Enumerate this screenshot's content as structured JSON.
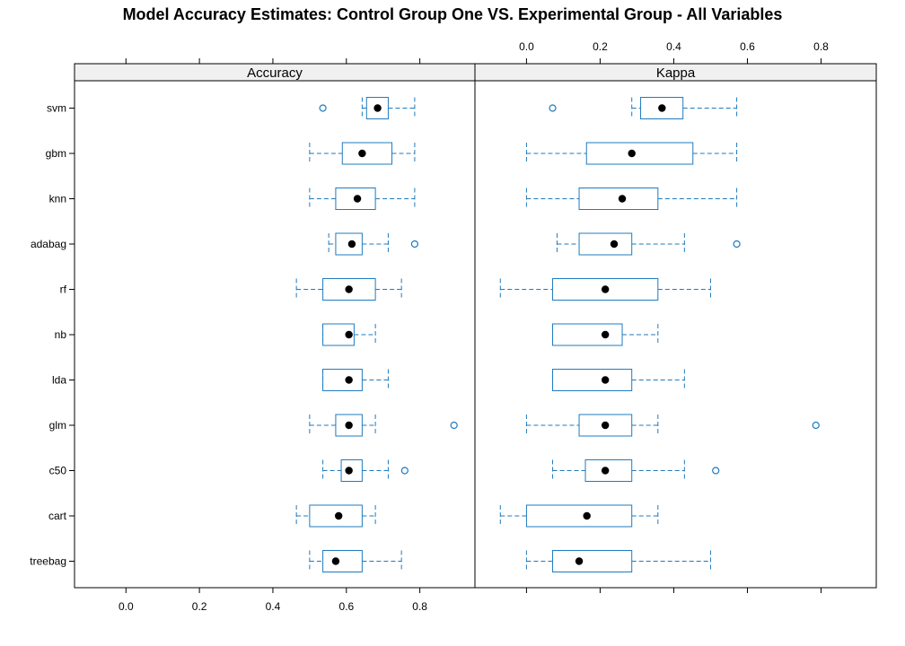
{
  "chart_data": {
    "type": "box",
    "title": "Model Accuracy Estimates: Control Group One VS. Experimental Group - All Variables",
    "categories": [
      "svm",
      "gbm",
      "knn",
      "adabag",
      "rf",
      "nb",
      "lda",
      "glm",
      "c50",
      "cart",
      "treebag"
    ],
    "series_color": "#1f7bbf",
    "median_color": "#000000",
    "panels": [
      {
        "name": "Accuracy",
        "xlim": [
          -0.14,
          0.95
        ],
        "ticks": [
          0.0,
          0.2,
          0.4,
          0.6,
          0.8
        ],
        "tick_labels": [
          "0.0",
          "0.2",
          "0.4",
          "0.6",
          "0.8"
        ],
        "tick_label_side": "bottom",
        "boxes": [
          {
            "category": "svm",
            "lo": 0.643,
            "q1": 0.655,
            "median": 0.685,
            "q3": 0.714,
            "hi": 0.786,
            "outliers": [
              0.536
            ]
          },
          {
            "category": "gbm",
            "lo": 0.5,
            "q1": 0.589,
            "median": 0.643,
            "q3": 0.724,
            "hi": 0.786,
            "outliers": []
          },
          {
            "category": "knn",
            "lo": 0.5,
            "q1": 0.571,
            "median": 0.63,
            "q3": 0.679,
            "hi": 0.786,
            "outliers": []
          },
          {
            "category": "adabag",
            "lo": 0.552,
            "q1": 0.571,
            "median": 0.615,
            "q3": 0.643,
            "hi": 0.714,
            "outliers": [
              0.786
            ]
          },
          {
            "category": "rf",
            "lo": 0.464,
            "q1": 0.536,
            "median": 0.607,
            "q3": 0.679,
            "hi": 0.75,
            "outliers": []
          },
          {
            "category": "nb",
            "lo": 0.536,
            "q1": 0.536,
            "median": 0.607,
            "q3": 0.621,
            "hi": 0.679,
            "outliers": []
          },
          {
            "category": "lda",
            "lo": 0.536,
            "q1": 0.536,
            "median": 0.607,
            "q3": 0.643,
            "hi": 0.714,
            "outliers": []
          },
          {
            "category": "glm",
            "lo": 0.5,
            "q1": 0.571,
            "median": 0.607,
            "q3": 0.643,
            "hi": 0.679,
            "outliers": [
              0.893
            ]
          },
          {
            "category": "c50",
            "lo": 0.536,
            "q1": 0.586,
            "median": 0.607,
            "q3": 0.643,
            "hi": 0.714,
            "outliers": [
              0.759
            ]
          },
          {
            "category": "cart",
            "lo": 0.464,
            "q1": 0.5,
            "median": 0.579,
            "q3": 0.643,
            "hi": 0.679,
            "outliers": []
          },
          {
            "category": "treebag",
            "lo": 0.5,
            "q1": 0.536,
            "median": 0.571,
            "q3": 0.643,
            "hi": 0.75,
            "outliers": []
          }
        ]
      },
      {
        "name": "Kappa",
        "xlim": [
          -0.14,
          0.95
        ],
        "ticks": [
          0.0,
          0.2,
          0.4,
          0.6,
          0.8
        ],
        "tick_labels": [
          "0.0",
          "0.2",
          "0.4",
          "0.6",
          "0.8"
        ],
        "tick_label_side": "top",
        "boxes": [
          {
            "category": "svm",
            "lo": 0.286,
            "q1": 0.31,
            "median": 0.368,
            "q3": 0.425,
            "hi": 0.571,
            "outliers": [
              0.071
            ]
          },
          {
            "category": "gbm",
            "lo": 0.0,
            "q1": 0.163,
            "median": 0.286,
            "q3": 0.452,
            "hi": 0.571,
            "outliers": []
          },
          {
            "category": "knn",
            "lo": 0.0,
            "q1": 0.143,
            "median": 0.26,
            "q3": 0.357,
            "hi": 0.571,
            "outliers": []
          },
          {
            "category": "adabag",
            "lo": 0.083,
            "q1": 0.143,
            "median": 0.238,
            "q3": 0.286,
            "hi": 0.429,
            "outliers": [
              0.571
            ]
          },
          {
            "category": "rf",
            "lo": -0.071,
            "q1": 0.071,
            "median": 0.214,
            "q3": 0.357,
            "hi": 0.5,
            "outliers": []
          },
          {
            "category": "nb",
            "lo": 0.071,
            "q1": 0.071,
            "median": 0.214,
            "q3": 0.26,
            "hi": 0.357,
            "outliers": []
          },
          {
            "category": "lda",
            "lo": 0.071,
            "q1": 0.071,
            "median": 0.214,
            "q3": 0.286,
            "hi": 0.429,
            "outliers": []
          },
          {
            "category": "glm",
            "lo": 0.0,
            "q1": 0.143,
            "median": 0.214,
            "q3": 0.286,
            "hi": 0.357,
            "outliers": [
              0.786
            ]
          },
          {
            "category": "c50",
            "lo": 0.071,
            "q1": 0.16,
            "median": 0.214,
            "q3": 0.286,
            "hi": 0.429,
            "outliers": [
              0.514
            ]
          },
          {
            "category": "cart",
            "lo": -0.071,
            "q1": 0.0,
            "median": 0.164,
            "q3": 0.286,
            "hi": 0.357,
            "outliers": []
          },
          {
            "category": "treebag",
            "lo": 0.0,
            "q1": 0.071,
            "median": 0.143,
            "q3": 0.286,
            "hi": 0.5,
            "outliers": []
          }
        ]
      }
    ]
  }
}
